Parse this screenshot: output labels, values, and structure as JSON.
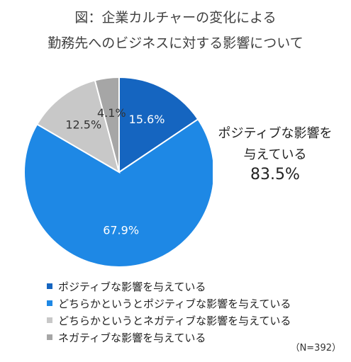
{
  "title": {
    "line1": "図：企業カルチャーの変化による",
    "line2": "勤務先へのビジネスに対する影響について"
  },
  "chart_data": {
    "type": "pie",
    "categories": [
      "ポジティブな影響を与えている",
      "どちらかというとポジティブな影響を与えている",
      "どちらかというとネガティブな影響を与えている",
      "ネガティブな影響を与えている"
    ],
    "values": [
      15.6,
      67.9,
      12.5,
      4.1
    ],
    "labels": [
      "15.6%",
      "67.9%",
      "12.5%",
      "4.1%"
    ],
    "colors": [
      "#1565c0",
      "#1e88e5",
      "#c8c8c8",
      "#a6a6a6"
    ],
    "label_colors": [
      "#ffffff",
      "#ffffff",
      "#333333",
      "#333333"
    ],
    "legend_position": "bottom-left",
    "start_angle_deg": 0,
    "direction": "clockwise"
  },
  "callout": {
    "line1": "ポジティブな影響を",
    "line2": "与えている",
    "value": "83.5%"
  },
  "note": "（N=392）"
}
